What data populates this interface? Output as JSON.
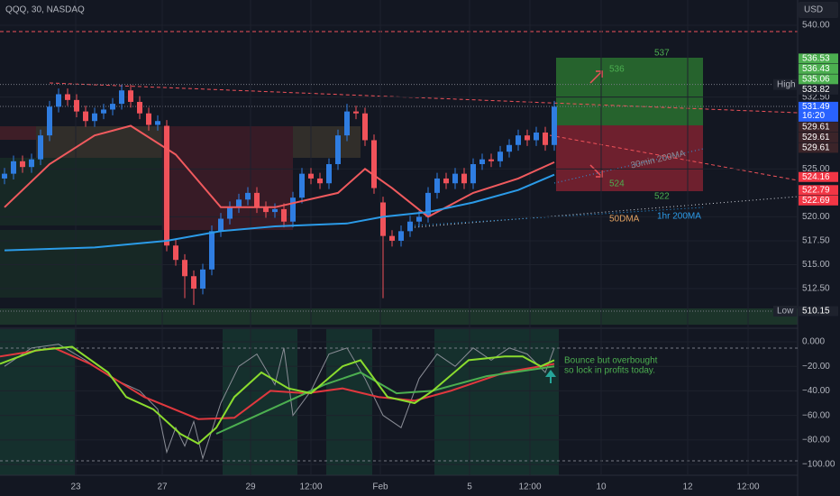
{
  "header": {
    "symbol": "QQQ, 30, NASDAQ",
    "currency": "USD"
  },
  "chart_data": [
    {
      "type": "candlestick",
      "xlim": [
        -0.5,
        88
      ],
      "ylim": [
        508.55,
        542.64
      ],
      "yticks": [
        {
          "value": 540,
          "label": "540.00"
        },
        {
          "value": 532.5,
          "label": "532.50"
        },
        {
          "value": 525,
          "label": "525.00"
        },
        {
          "value": 520,
          "label": "520.00"
        },
        {
          "value": 517.5,
          "label": "517.50"
        },
        {
          "value": 515,
          "label": "515.00"
        },
        {
          "value": 512.5,
          "label": "512.50"
        }
      ],
      "up_color": "#2f7de1",
      "down_color": "#f0525a",
      "x": [
        0,
        1,
        2,
        3,
        4,
        5,
        6,
        7,
        8,
        9,
        10,
        11,
        12,
        13,
        14,
        15,
        16,
        17,
        18,
        19,
        20,
        21,
        22,
        23,
        24,
        25,
        26,
        27,
        28,
        29,
        30,
        31,
        32,
        33,
        34,
        35,
        36,
        37,
        38,
        39,
        40,
        41,
        42,
        43,
        44,
        45,
        46,
        47,
        48,
        49,
        50,
        51,
        52,
        53,
        54,
        55,
        56,
        57,
        58,
        59,
        60,
        61
      ],
      "open": [
        524.0,
        524.5,
        525.8,
        525.2,
        526.0,
        528.5,
        531.5,
        532.8,
        532.2,
        531.0,
        530.0,
        530.8,
        531.2,
        531.8,
        533.2,
        532.0,
        530.8,
        529.6,
        529.5,
        517.0,
        515.5,
        513.8,
        512.5,
        514.5,
        518.5,
        519.8,
        521.0,
        521.8,
        522.5,
        521.0,
        520.5,
        520.8,
        519.5,
        522.0,
        524.5,
        524.0,
        523.5,
        525.5,
        528.5,
        531.0,
        530.8,
        528.0,
        521.5,
        518.0,
        517.5,
        518.5,
        519.5,
        520.0,
        522.5,
        524.0,
        523.5,
        524.5,
        523.5,
        525.5,
        526.0,
        525.8,
        526.8,
        527.5,
        528.5,
        528.0,
        528.8,
        527.5
      ],
      "high": [
        525.1,
        526.4,
        526.4,
        526.6,
        529.1,
        532.1,
        533.4,
        533.4,
        532.8,
        531.6,
        531.4,
        531.8,
        532.4,
        533.8,
        533.8,
        532.6,
        531.4,
        530.6,
        530.1,
        517.6,
        516.1,
        514.4,
        515.1,
        519.1,
        520.4,
        521.6,
        522.4,
        523.1,
        523.1,
        521.6,
        521.4,
        521.4,
        522.6,
        525.1,
        525.1,
        524.6,
        526.1,
        529.1,
        531.8,
        531.6,
        531.4,
        528.6,
        522.1,
        518.6,
        519.1,
        520.1,
        520.6,
        523.1,
        524.6,
        524.6,
        525.1,
        525.1,
        526.1,
        526.6,
        526.6,
        527.4,
        528.1,
        529.1,
        529.1,
        529.4,
        529.4,
        532.1
      ],
      "low": [
        523.4,
        523.9,
        524.6,
        524.6,
        525.4,
        527.9,
        530.9,
        531.6,
        530.4,
        529.4,
        529.4,
        530.2,
        530.6,
        531.2,
        531.4,
        530.2,
        529.0,
        529.0,
        516.4,
        514.9,
        511.5,
        510.8,
        511.9,
        513.9,
        517.9,
        519.2,
        520.4,
        521.2,
        520.4,
        519.9,
        519.9,
        518.9,
        518.9,
        521.4,
        523.4,
        522.9,
        522.9,
        524.9,
        527.9,
        530.2,
        527.4,
        522.4,
        511.5,
        516.9,
        516.9,
        517.9,
        518.9,
        519.4,
        521.9,
        522.9,
        522.9,
        522.9,
        522.9,
        524.9,
        525.2,
        525.2,
        526.2,
        526.9,
        527.4,
        527.4,
        526.9,
        526.9
      ],
      "close": [
        524.5,
        525.8,
        525.2,
        526.0,
        528.5,
        531.5,
        532.8,
        532.2,
        531.0,
        530.0,
        530.8,
        531.2,
        531.8,
        533.2,
        532.0,
        530.8,
        529.6,
        530.0,
        517.0,
        515.5,
        513.8,
        512.5,
        514.5,
        518.5,
        519.8,
        521.0,
        521.8,
        522.5,
        521.0,
        520.5,
        520.8,
        519.5,
        522.0,
        524.5,
        524.0,
        523.5,
        525.5,
        528.5,
        531.0,
        530.8,
        528.0,
        523.0,
        518.0,
        517.5,
        518.5,
        519.5,
        520.0,
        522.5,
        524.0,
        523.5,
        524.5,
        523.5,
        525.5,
        526.0,
        525.8,
        526.8,
        527.5,
        528.5,
        528.0,
        528.8,
        527.5,
        531.5
      ],
      "overlays": [
        {
          "color": "#f05a5e",
          "x": [
            0,
            5,
            10,
            14,
            19,
            24,
            30,
            37,
            40,
            43,
            47,
            52,
            57,
            61
          ],
          "values": [
            521,
            525.5,
            528.5,
            529.5,
            526.5,
            521,
            521,
            522.5,
            525,
            523,
            520,
            522.5,
            524,
            525.7
          ]
        },
        {
          "color": "#2b9be8",
          "x": [
            0,
            10,
            18,
            24,
            30,
            38,
            42,
            47,
            52,
            57,
            61
          ],
          "values": [
            516.5,
            516.8,
            517.5,
            518.5,
            519,
            519.3,
            520,
            520.5,
            521.5,
            522.8,
            524.4
          ]
        }
      ],
      "price_labels": [
        {
          "value": 536.53,
          "label": "536.53",
          "color": "#4caf50"
        },
        {
          "value": 536.43,
          "label": "536.43",
          "color": "#4caf50"
        },
        {
          "value": 535.06,
          "label": "535.06",
          "color": "#4caf50"
        },
        {
          "value": 533.82,
          "label": "533.82",
          "color": "#1e222d",
          "tag": "High"
        },
        {
          "value": 531.49,
          "label": "531.49",
          "color": "#2962ff",
          "countdown": "16:20"
        },
        {
          "value": 529.61,
          "label": "529.61",
          "color": "#3b2429"
        },
        {
          "value": 529.61,
          "label": "529.61",
          "color": "#3b2429"
        },
        {
          "value": 529.61,
          "label": "529.61",
          "color": "#3b2429"
        },
        {
          "value": 524.16,
          "label": "524.16",
          "color": "#f23645"
        },
        {
          "value": 522.79,
          "label": "522.79",
          "color": "#f23645"
        },
        {
          "value": 522.69,
          "label": "522.69",
          "color": "#f23645"
        },
        {
          "value": 510.15,
          "label": "510.15",
          "color": "#1e222d",
          "tag": "Low"
        }
      ],
      "annotations": [
        "537",
        "536",
        "524",
        "522",
        "30min 200MA",
        "50DMA",
        "1hr 200MA"
      ]
    },
    {
      "type": "line",
      "xlim": [
        -0.5,
        88
      ],
      "ylim": [
        -108.8,
        10.3
      ],
      "yticks": [
        {
          "value": 0,
          "label": "0.000"
        },
        {
          "value": -20,
          "label": "−20.00"
        },
        {
          "value": -40,
          "label": "−40.00"
        },
        {
          "value": -60,
          "label": "−60.00"
        },
        {
          "value": -80,
          "label": "−80.00"
        },
        {
          "value": -100,
          "label": "−100.00"
        }
      ],
      "xticks": [
        {
          "value": 7.9,
          "label": "23"
        },
        {
          "value": 17.5,
          "label": "27"
        },
        {
          "value": 27.3,
          "label": "29"
        },
        {
          "value": 34,
          "label": "12:00"
        },
        {
          "value": 41.7,
          "label": "Feb"
        },
        {
          "value": 51.6,
          "label": "5"
        },
        {
          "value": 58.3,
          "label": "12:00"
        },
        {
          "value": 66.2,
          "label": "10"
        },
        {
          "value": 75.8,
          "label": "12"
        },
        {
          "value": 82.5,
          "label": "12:00"
        }
      ],
      "series": [
        {
          "color": "#8a8d96",
          "x": [
            0,
            3,
            6,
            9,
            12,
            15,
            17,
            18,
            19,
            20,
            21,
            22,
            24,
            26,
            28,
            30,
            31,
            32,
            34,
            36,
            38,
            40,
            42,
            44,
            46,
            48,
            50,
            52,
            54,
            56,
            58,
            60,
            61
          ],
          "values": [
            -20,
            -5,
            -2,
            -15,
            -30,
            -40,
            -55,
            -90,
            -70,
            -85,
            -65,
            -95,
            -50,
            -20,
            -10,
            -35,
            -5,
            -60,
            -40,
            -10,
            -5,
            -30,
            -60,
            -70,
            -30,
            -10,
            -20,
            -5,
            -15,
            -5,
            -10,
            -25,
            -5
          ]
        },
        {
          "color": "#e0383e",
          "x": [
            -0.5,
            5.5,
            9.5,
            15.5,
            21.5,
            25.5,
            29.5,
            33.5,
            37.5,
            41.5,
            45.5,
            49.5,
            55.5,
            61
          ],
          "values": [
            -12,
            -5,
            -18,
            -45,
            -63,
            -62,
            -40,
            -42,
            -38,
            -45,
            -48,
            -40,
            -25,
            -18
          ]
        },
        {
          "color": "#4caf50",
          "x": [
            23.5,
            29.5,
            35.5,
            39.5,
            43.5,
            47.5,
            53.5,
            61
          ],
          "values": [
            -75,
            -55,
            -35,
            -25,
            -42,
            -40,
            -28,
            -20
          ]
        },
        {
          "color": "#8bdc2e",
          "x": [
            -0.5,
            3.5,
            7.5,
            11.5,
            13.5,
            16.5,
            19.5,
            21.5,
            23.5,
            25.5,
            28.5,
            31.5,
            34,
            37.5,
            39.5,
            42.5,
            45.5,
            47.5,
            51.5,
            55.5,
            57.5,
            59.5,
            61
          ],
          "values": [
            -18,
            -7,
            -4,
            -25,
            -45,
            -55,
            -75,
            -83,
            -70,
            -45,
            -25,
            -38,
            -42,
            -20,
            -15,
            -45,
            -50,
            -40,
            -15,
            -12,
            -12,
            -20,
            -15
          ]
        }
      ],
      "note": [
        "Bounce but overbought",
        "so lock in profits today."
      ]
    }
  ]
}
